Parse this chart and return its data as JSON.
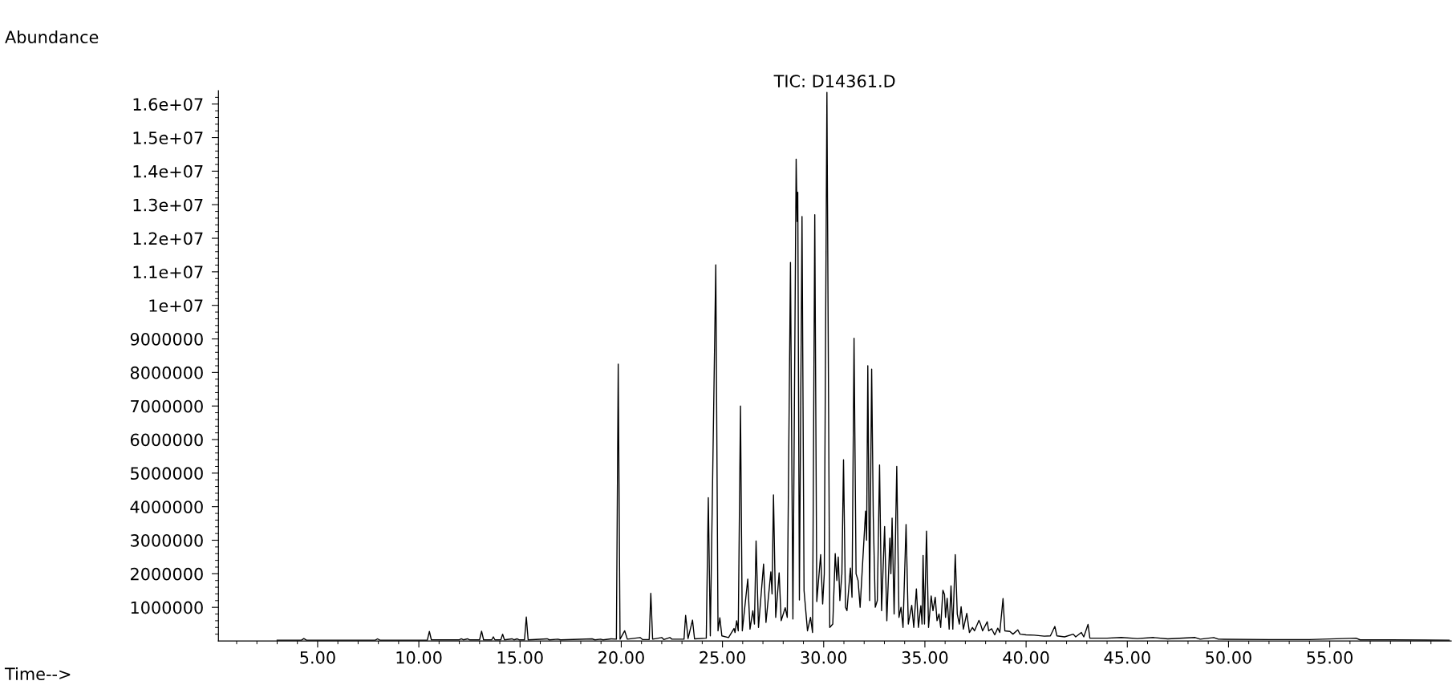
{
  "chart_data": {
    "type": "line",
    "title": "TIC: D14361.D",
    "xlabel": "Time-->",
    "ylabel": "Abundance",
    "xlim": [
      0.1,
      61.0
    ],
    "ylim": [
      0,
      16400000
    ],
    "xticks": [
      {
        "value": 1,
        "label": null
      },
      {
        "value": 2,
        "label": null
      },
      {
        "value": 3,
        "label": null
      },
      {
        "value": 4,
        "label": null
      },
      {
        "value": 5,
        "label": "5.00"
      },
      {
        "value": 6,
        "label": null
      },
      {
        "value": 7,
        "label": null
      },
      {
        "value": 8,
        "label": null
      },
      {
        "value": 9,
        "label": null
      },
      {
        "value": 10,
        "label": "10.00"
      },
      {
        "value": 11,
        "label": null
      },
      {
        "value": 12,
        "label": null
      },
      {
        "value": 13,
        "label": null
      },
      {
        "value": 14,
        "label": null
      },
      {
        "value": 15,
        "label": "15.00"
      },
      {
        "value": 16,
        "label": null
      },
      {
        "value": 17,
        "label": null
      },
      {
        "value": 18,
        "label": null
      },
      {
        "value": 19,
        "label": null
      },
      {
        "value": 20,
        "label": "20.00"
      },
      {
        "value": 21,
        "label": null
      },
      {
        "value": 22,
        "label": null
      },
      {
        "value": 23,
        "label": null
      },
      {
        "value": 24,
        "label": null
      },
      {
        "value": 25,
        "label": "25.00"
      },
      {
        "value": 26,
        "label": null
      },
      {
        "value": 27,
        "label": null
      },
      {
        "value": 28,
        "label": null
      },
      {
        "value": 29,
        "label": null
      },
      {
        "value": 30,
        "label": "30.00"
      },
      {
        "value": 31,
        "label": null
      },
      {
        "value": 32,
        "label": null
      },
      {
        "value": 33,
        "label": null
      },
      {
        "value": 34,
        "label": null
      },
      {
        "value": 35,
        "label": "35.00"
      },
      {
        "value": 36,
        "label": null
      },
      {
        "value": 37,
        "label": null
      },
      {
        "value": 38,
        "label": null
      },
      {
        "value": 39,
        "label": null
      },
      {
        "value": 40,
        "label": "40.00"
      },
      {
        "value": 41,
        "label": null
      },
      {
        "value": 42,
        "label": null
      },
      {
        "value": 43,
        "label": null
      },
      {
        "value": 44,
        "label": null
      },
      {
        "value": 45,
        "label": "45.00"
      },
      {
        "value": 46,
        "label": null
      },
      {
        "value": 47,
        "label": null
      },
      {
        "value": 48,
        "label": null
      },
      {
        "value": 49,
        "label": null
      },
      {
        "value": 50,
        "label": "50.00"
      },
      {
        "value": 51,
        "label": null
      },
      {
        "value": 52,
        "label": null
      },
      {
        "value": 53,
        "label": null
      },
      {
        "value": 54,
        "label": null
      },
      {
        "value": 55,
        "label": "55.00"
      },
      {
        "value": 56,
        "label": null
      },
      {
        "value": 57,
        "label": null
      },
      {
        "value": 58,
        "label": null
      },
      {
        "value": 59,
        "label": null
      },
      {
        "value": 60,
        "label": null
      }
    ],
    "yticks": [
      {
        "value": 200000,
        "label": null
      },
      {
        "value": 400000,
        "label": null
      },
      {
        "value": 600000,
        "label": null
      },
      {
        "value": 800000,
        "label": null
      },
      1000000,
      {
        "value": 1200000,
        "label": null
      },
      {
        "value": 1400000,
        "label": null
      },
      {
        "value": 1600000,
        "label": null
      },
      {
        "value": 1800000,
        "label": null
      },
      2000000,
      {
        "value": 2200000,
        "label": null
      },
      {
        "value": 2400000,
        "label": null
      },
      {
        "value": 2600000,
        "label": null
      },
      {
        "value": 2800000,
        "label": null
      },
      3000000,
      {
        "value": 3200000,
        "label": null
      },
      {
        "value": 3400000,
        "label": null
      },
      {
        "value": 3600000,
        "label": null
      },
      {
        "value": 3800000,
        "label": null
      },
      4000000,
      {
        "value": 4200000,
        "label": null
      },
      {
        "value": 4400000,
        "label": null
      },
      {
        "value": 4600000,
        "label": null
      },
      {
        "value": 4800000,
        "label": null
      },
      5000000,
      {
        "value": 5200000,
        "label": null
      },
      {
        "value": 5400000,
        "label": null
      },
      {
        "value": 5600000,
        "label": null
      },
      {
        "value": 5800000,
        "label": null
      },
      6000000,
      {
        "value": 6200000,
        "label": null
      },
      {
        "value": 6400000,
        "label": null
      },
      {
        "value": 6600000,
        "label": null
      },
      {
        "value": 6800000,
        "label": null
      },
      7000000,
      {
        "value": 7200000,
        "label": null
      },
      {
        "value": 7400000,
        "label": null
      },
      {
        "value": 7600000,
        "label": null
      },
      {
        "value": 7800000,
        "label": null
      },
      8000000,
      {
        "value": 8200000,
        "label": null
      },
      {
        "value": 8400000,
        "label": null
      },
      {
        "value": 8600000,
        "label": null
      },
      {
        "value": 8800000,
        "label": null
      },
      9000000,
      {
        "value": 9200000,
        "label": null
      },
      {
        "value": 9400000,
        "label": null
      },
      {
        "value": 9600000,
        "label": null
      },
      {
        "value": 9800000,
        "label": null
      },
      {
        "value": 10000000,
        "label": "1e+07"
      },
      {
        "value": 10200000,
        "label": null
      },
      {
        "value": 10400000,
        "label": null
      },
      {
        "value": 10600000,
        "label": null
      },
      {
        "value": 10800000,
        "label": null
      },
      {
        "value": 11000000,
        "label": "1.1e+07"
      },
      {
        "value": 11200000,
        "label": null
      },
      {
        "value": 11400000,
        "label": null
      },
      {
        "value": 11600000,
        "label": null
      },
      {
        "value": 11800000,
        "label": null
      },
      {
        "value": 12000000,
        "label": "1.2e+07"
      },
      {
        "value": 12200000,
        "label": null
      },
      {
        "value": 12400000,
        "label": null
      },
      {
        "value": 12600000,
        "label": null
      },
      {
        "value": 12800000,
        "label": null
      },
      {
        "value": 13000000,
        "label": "1.3e+07"
      },
      {
        "value": 13200000,
        "label": null
      },
      {
        "value": 13400000,
        "label": null
      },
      {
        "value": 13600000,
        "label": null
      },
      {
        "value": 13800000,
        "label": null
      },
      {
        "value": 14000000,
        "label": "1.4e+07"
      },
      {
        "value": 14200000,
        "label": null
      },
      {
        "value": 14400000,
        "label": null
      },
      {
        "value": 14600000,
        "label": null
      },
      {
        "value": 14800000,
        "label": null
      },
      {
        "value": 15000000,
        "label": "1.5e+07"
      },
      {
        "value": 15200000,
        "label": null
      },
      {
        "value": 15400000,
        "label": null
      },
      {
        "value": 15600000,
        "label": null
      },
      {
        "value": 15800000,
        "label": null
      },
      {
        "value": 16000000,
        "label": "1.6e+07"
      },
      {
        "value": 16200000,
        "label": null
      }
    ],
    "x": [
      3.0,
      4.2,
      4.32,
      4.45,
      7.85,
      7.96,
      8.08,
      10.42,
      10.52,
      10.62,
      12.0,
      12.1,
      12.2,
      12.4,
      12.5,
      13.0,
      13.1,
      13.2,
      13.6,
      13.68,
      13.76,
      14.05,
      14.14,
      14.23,
      14.6,
      14.7,
      14.85,
      14.95,
      15.22,
      15.31,
      15.4,
      16.34,
      16.45,
      16.87,
      17.0,
      18.56,
      18.7,
      18.98,
      19.1,
      19.5,
      19.76,
      19.85,
      19.94,
      20.17,
      20.3,
      20.93,
      21.05,
      21.38,
      21.46,
      21.55,
      22.0,
      22.1,
      22.4,
      22.5,
      23.1,
      23.18,
      23.3,
      23.52,
      23.62,
      24.2,
      24.3,
      24.4,
      24.67,
      24.78,
      24.87,
      24.97,
      25.3,
      25.57,
      25.62,
      25.7,
      25.78,
      25.89,
      25.98,
      26.25,
      26.36,
      26.5,
      26.58,
      26.66,
      26.78,
      27.03,
      27.15,
      27.39,
      27.45,
      27.52,
      27.63,
      27.8,
      27.9,
      28.1,
      28.2,
      28.36,
      28.48,
      28.64,
      28.69,
      28.72,
      28.8,
      28.93,
      29.03,
      29.2,
      29.35,
      29.45,
      29.56,
      29.66,
      29.85,
      29.95,
      30.03,
      30.16,
      30.3,
      30.45,
      30.57,
      30.65,
      30.72,
      30.8,
      30.9,
      30.98,
      31.08,
      31.15,
      31.32,
      31.4,
      31.5,
      31.6,
      31.7,
      31.8,
      32.07,
      32.12,
      32.18,
      32.27,
      32.37,
      32.45,
      32.55,
      32.65,
      32.76,
      32.86,
      33.01,
      33.12,
      33.27,
      33.32,
      33.38,
      33.48,
      33.61,
      33.72,
      33.82,
      33.92,
      34.07,
      34.18,
      34.35,
      34.45,
      34.58,
      34.68,
      34.8,
      34.86,
      34.91,
      34.98,
      35.08,
      35.18,
      35.31,
      35.4,
      35.51,
      35.6,
      35.7,
      35.78,
      35.89,
      35.97,
      36.02,
      36.1,
      36.2,
      36.29,
      36.38,
      36.5,
      36.6,
      36.7,
      36.79,
      36.9,
      37.07,
      37.2,
      37.35,
      37.45,
      37.67,
      37.75,
      37.85,
      38.08,
      38.15,
      38.3,
      38.45,
      38.6,
      38.7,
      38.86,
      38.95,
      39.2,
      39.35,
      39.59,
      39.7,
      40.0,
      40.4,
      40.9,
      41.2,
      41.42,
      41.52,
      41.9,
      42.33,
      42.45,
      42.73,
      42.85,
      43.06,
      43.15,
      44.0,
      44.7,
      45.5,
      46.3,
      47.0,
      48.35,
      48.6,
      49.27,
      49.5,
      52.0,
      54.0,
      56.3,
      56.5,
      58.0,
      60.9
    ],
    "series": [
      {
        "color": "#000000",
        "values": [
          20000,
          20000,
          70000,
          20000,
          20000,
          60000,
          20000,
          20000,
          280000,
          30000,
          30000,
          60000,
          30000,
          60000,
          30000,
          30000,
          290000,
          30000,
          30000,
          120000,
          30000,
          30000,
          200000,
          30000,
          60000,
          30000,
          60000,
          30000,
          30000,
          710000,
          30000,
          60000,
          30000,
          50000,
          30000,
          60000,
          30000,
          50000,
          30000,
          60000,
          50000,
          8250000,
          50000,
          300000,
          50000,
          100000,
          40000,
          40000,
          1420000,
          50000,
          100000,
          40000,
          100000,
          50000,
          50000,
          760000,
          70000,
          620000,
          60000,
          80000,
          4270000,
          150000,
          11210000,
          300000,
          690000,
          150000,
          100000,
          370000,
          250000,
          600000,
          300000,
          7000000,
          300000,
          1840000,
          350000,
          900000,
          500000,
          2980000,
          400000,
          2290000,
          550000,
          2060000,
          1400000,
          4350000,
          700000,
          2030000,
          600000,
          990000,
          700000,
          11280000,
          650000,
          14360000,
          12500000,
          13370000,
          1220000,
          12650000,
          1500000,
          300000,
          700000,
          250000,
          12700000,
          1170000,
          2570000,
          1100000,
          2000000,
          16350000,
          400000,
          500000,
          2600000,
          1800000,
          2500000,
          1200000,
          2000000,
          5400000,
          1000000,
          900000,
          2170000,
          1300000,
          9020000,
          2000000,
          1800000,
          1000000,
          3870000,
          3000000,
          8200000,
          1200000,
          8100000,
          3700000,
          1000000,
          1200000,
          5240000,
          900000,
          3410000,
          600000,
          3060000,
          2000000,
          3660000,
          800000,
          5200000,
          700000,
          1000000,
          400000,
          3470000,
          500000,
          1060000,
          400000,
          1550000,
          400000,
          1050000,
          500000,
          2550000,
          500000,
          3270000,
          400000,
          1340000,
          900000,
          1300000,
          600000,
          800000,
          400000,
          1510000,
          1380000,
          700000,
          1270000,
          350000,
          1640000,
          350000,
          2570000,
          800000,
          500000,
          1020000,
          350000,
          820000,
          250000,
          400000,
          300000,
          610000,
          500000,
          300000,
          570000,
          300000,
          360000,
          180000,
          380000,
          250000,
          1260000,
          300000,
          280000,
          200000,
          330000,
          200000,
          180000,
          170000,
          140000,
          150000,
          430000,
          150000,
          120000,
          200000,
          120000,
          250000,
          120000,
          490000,
          80000,
          80000,
          100000,
          70000,
          100000,
          60000,
          100000,
          50000,
          100000,
          50000,
          40000,
          40000,
          80000,
          30000,
          30000,
          20000
        ]
      }
    ]
  }
}
